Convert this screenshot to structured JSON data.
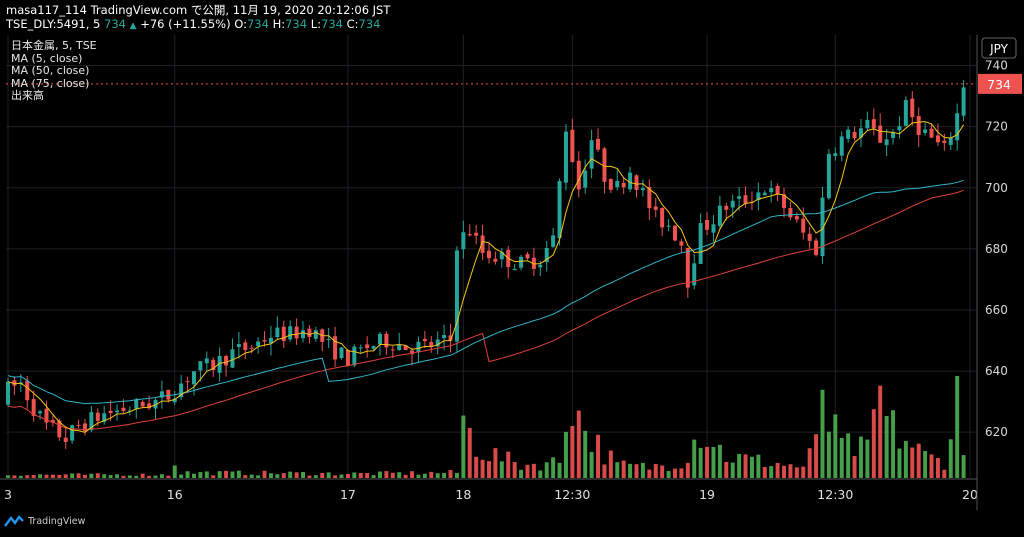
{
  "header": {
    "line1": "masa117_114 TradingView.com で公開, 11月 19, 2020 20:12:06 JST",
    "symbol": "TSE_DLY:5491, 5",
    "last": "734",
    "arrow": "▲",
    "change": "+76 (+11.55%)",
    "o_label": "O:",
    "o": "734",
    "h_label": "H:",
    "h": "734",
    "l_label": "L:",
    "l": "734",
    "c_label": "C:",
    "c": "734"
  },
  "legend": {
    "title": "日本金属, 5, TSE",
    "ma5": "MA (5, close)",
    "ma50": "MA (50, close)",
    "ma75": "MA (75, close)",
    "volume": "出来高"
  },
  "footer": {
    "brand": "TradingView"
  },
  "colors": {
    "up": "#26a69a",
    "down": "#ef5350",
    "ma5": "#f5c518",
    "ma50": "#2fb6c9",
    "ma75": "#e0413a",
    "vol_up": "#4caf50",
    "vol_down": "#ef5350",
    "grid": "#1f2127",
    "price_tag": "#ef5350"
  },
  "chart_data": {
    "type": "candlestick",
    "currency": "JPY",
    "last_price": 734,
    "y_ticks": [
      620,
      640,
      660,
      680,
      700,
      720,
      740
    ],
    "ylim": [
      605,
      750
    ],
    "x_ticks": [
      {
        "label": "3",
        "index": 0
      },
      {
        "label": "16",
        "index": 26
      },
      {
        "label": "17",
        "index": 53
      },
      {
        "label": "18",
        "index": 71
      },
      {
        "label": "12:30",
        "index": 88
      },
      {
        "label": "19",
        "index": 109
      },
      {
        "label": "12:30",
        "index": 129
      },
      {
        "label": "20",
        "index": 150
      }
    ],
    "bar_count": 150,
    "anchors": [
      [
        0,
        630
      ],
      [
        1,
        634
      ],
      [
        3,
        636
      ],
      [
        5,
        628
      ],
      [
        7,
        622
      ],
      [
        10,
        618
      ],
      [
        12,
        622
      ],
      [
        16,
        626
      ],
      [
        20,
        628
      ],
      [
        24,
        630
      ],
      [
        26,
        632
      ],
      [
        28,
        636
      ],
      [
        30,
        640
      ],
      [
        33,
        642
      ],
      [
        36,
        646
      ],
      [
        39,
        648
      ],
      [
        42,
        652
      ],
      [
        45,
        652
      ],
      [
        48,
        654
      ],
      [
        51,
        648
      ],
      [
        54,
        644
      ],
      [
        57,
        648
      ],
      [
        60,
        650
      ],
      [
        63,
        648
      ],
      [
        66,
        648
      ],
      [
        70,
        650
      ],
      [
        71,
        682
      ],
      [
        73,
        686
      ],
      [
        75,
        679
      ],
      [
        78,
        677
      ],
      [
        81,
        675
      ],
      [
        84,
        677
      ],
      [
        86,
        683
      ],
      [
        88,
        720
      ],
      [
        90,
        700
      ],
      [
        92,
        716
      ],
      [
        94,
        704
      ],
      [
        96,
        700
      ],
      [
        98,
        706
      ],
      [
        100,
        698
      ],
      [
        102,
        690
      ],
      [
        104,
        688
      ],
      [
        106,
        682
      ],
      [
        107,
        670
      ],
      [
        109,
        686
      ],
      [
        111,
        690
      ],
      [
        113,
        694
      ],
      [
        116,
        696
      ],
      [
        119,
        700
      ],
      [
        122,
        694
      ],
      [
        124,
        688
      ],
      [
        126,
        682
      ],
      [
        127,
        680
      ],
      [
        129,
        712
      ],
      [
        131,
        716
      ],
      [
        133,
        718
      ],
      [
        135,
        720
      ],
      [
        137,
        716
      ],
      [
        139,
        718
      ],
      [
        141,
        726
      ],
      [
        143,
        720
      ],
      [
        145,
        716
      ],
      [
        147,
        712
      ],
      [
        149,
        724
      ],
      [
        150,
        734
      ]
    ],
    "volume_anchors": [
      [
        0,
        0.03
      ],
      [
        25,
        0.03
      ],
      [
        26,
        0.15
      ],
      [
        27,
        0.05
      ],
      [
        55,
        0.04
      ],
      [
        70,
        0.05
      ],
      [
        71,
        0.55
      ],
      [
        72,
        0.4
      ],
      [
        74,
        0.25
      ],
      [
        80,
        0.12
      ],
      [
        86,
        0.15
      ],
      [
        87,
        0.6
      ],
      [
        88,
        0.85
      ],
      [
        89,
        0.55
      ],
      [
        92,
        0.3
      ],
      [
        95,
        0.12
      ],
      [
        100,
        0.1
      ],
      [
        105,
        0.15
      ],
      [
        108,
        0.45
      ],
      [
        109,
        0.4
      ],
      [
        112,
        0.2
      ],
      [
        118,
        0.15
      ],
      [
        124,
        0.1
      ],
      [
        126,
        0.3
      ],
      [
        127,
        0.9
      ],
      [
        128,
        0.5
      ],
      [
        130,
        0.3
      ],
      [
        134,
        0.25
      ],
      [
        136,
        0.8
      ],
      [
        137,
        0.5
      ],
      [
        140,
        0.35
      ],
      [
        143,
        0.2
      ],
      [
        146,
        0.15
      ],
      [
        148,
        0.75
      ],
      [
        149,
        0.2
      ],
      [
        150,
        0.2
      ]
    ],
    "series": [
      {
        "name": "MA (5, close)"
      },
      {
        "name": "MA (50, close)"
      },
      {
        "name": "MA (75, close)"
      },
      {
        "name": "出来高"
      }
    ]
  }
}
